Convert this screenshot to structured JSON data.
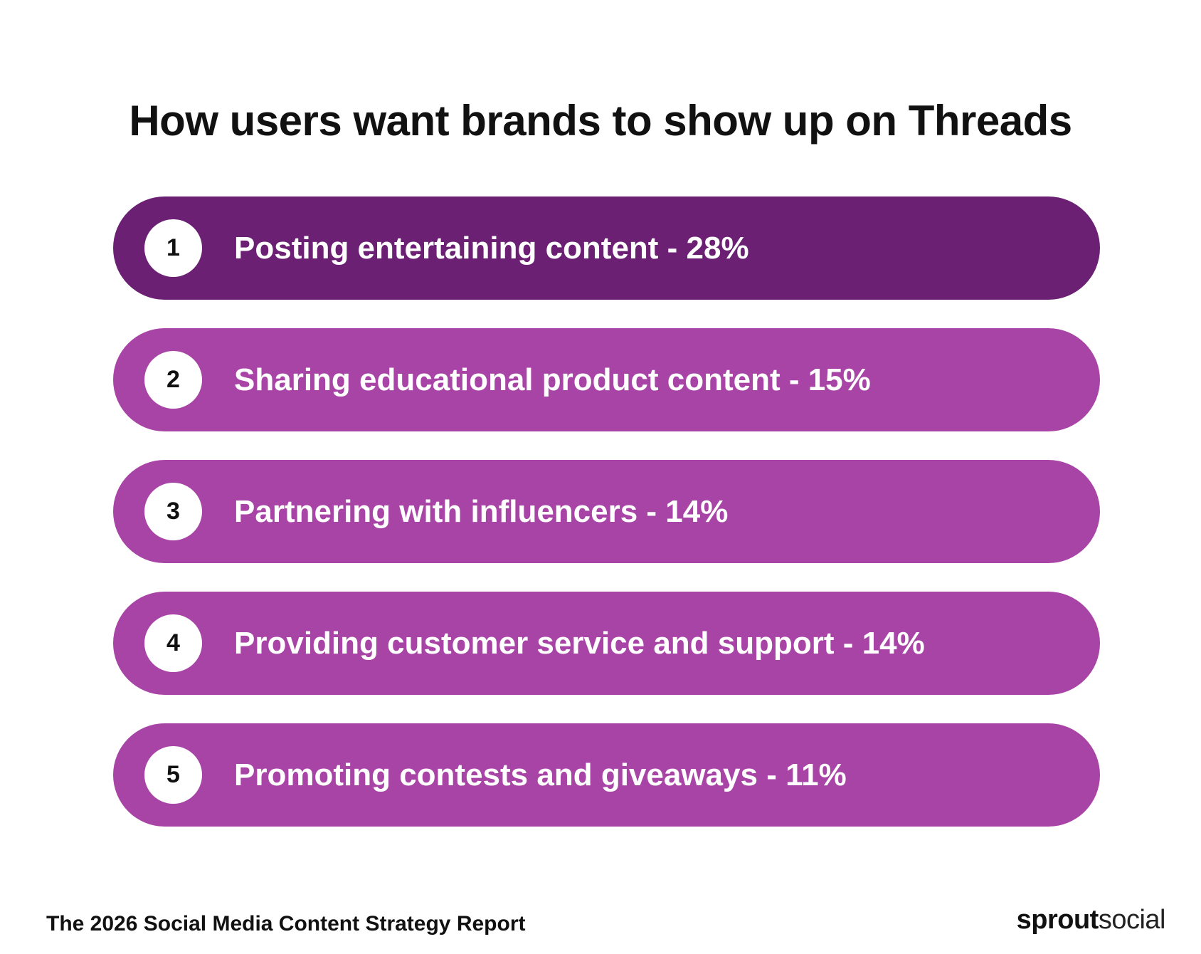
{
  "title": "How users want brands to show up on Threads",
  "colors": {
    "highlight": "#6b2074",
    "item": "#a944a7",
    "number_circle": "#ffffff"
  },
  "items": [
    {
      "rank": "1",
      "label": "Posting entertaining content - 28%",
      "highlighted": true
    },
    {
      "rank": "2",
      "label": "Sharing educational product content - 15%",
      "highlighted": false
    },
    {
      "rank": "3",
      "label": "Partnering with influencers - 14%",
      "highlighted": false
    },
    {
      "rank": "4",
      "label": "Providing customer service and support - 14%",
      "highlighted": false
    },
    {
      "rank": "5",
      "label": "Promoting contests and giveaways - 11%",
      "highlighted": false
    }
  ],
  "footer": {
    "report_name": "The 2026 Social Media Content Strategy Report",
    "logo_part1": "sprout",
    "logo_part2": "social"
  }
}
